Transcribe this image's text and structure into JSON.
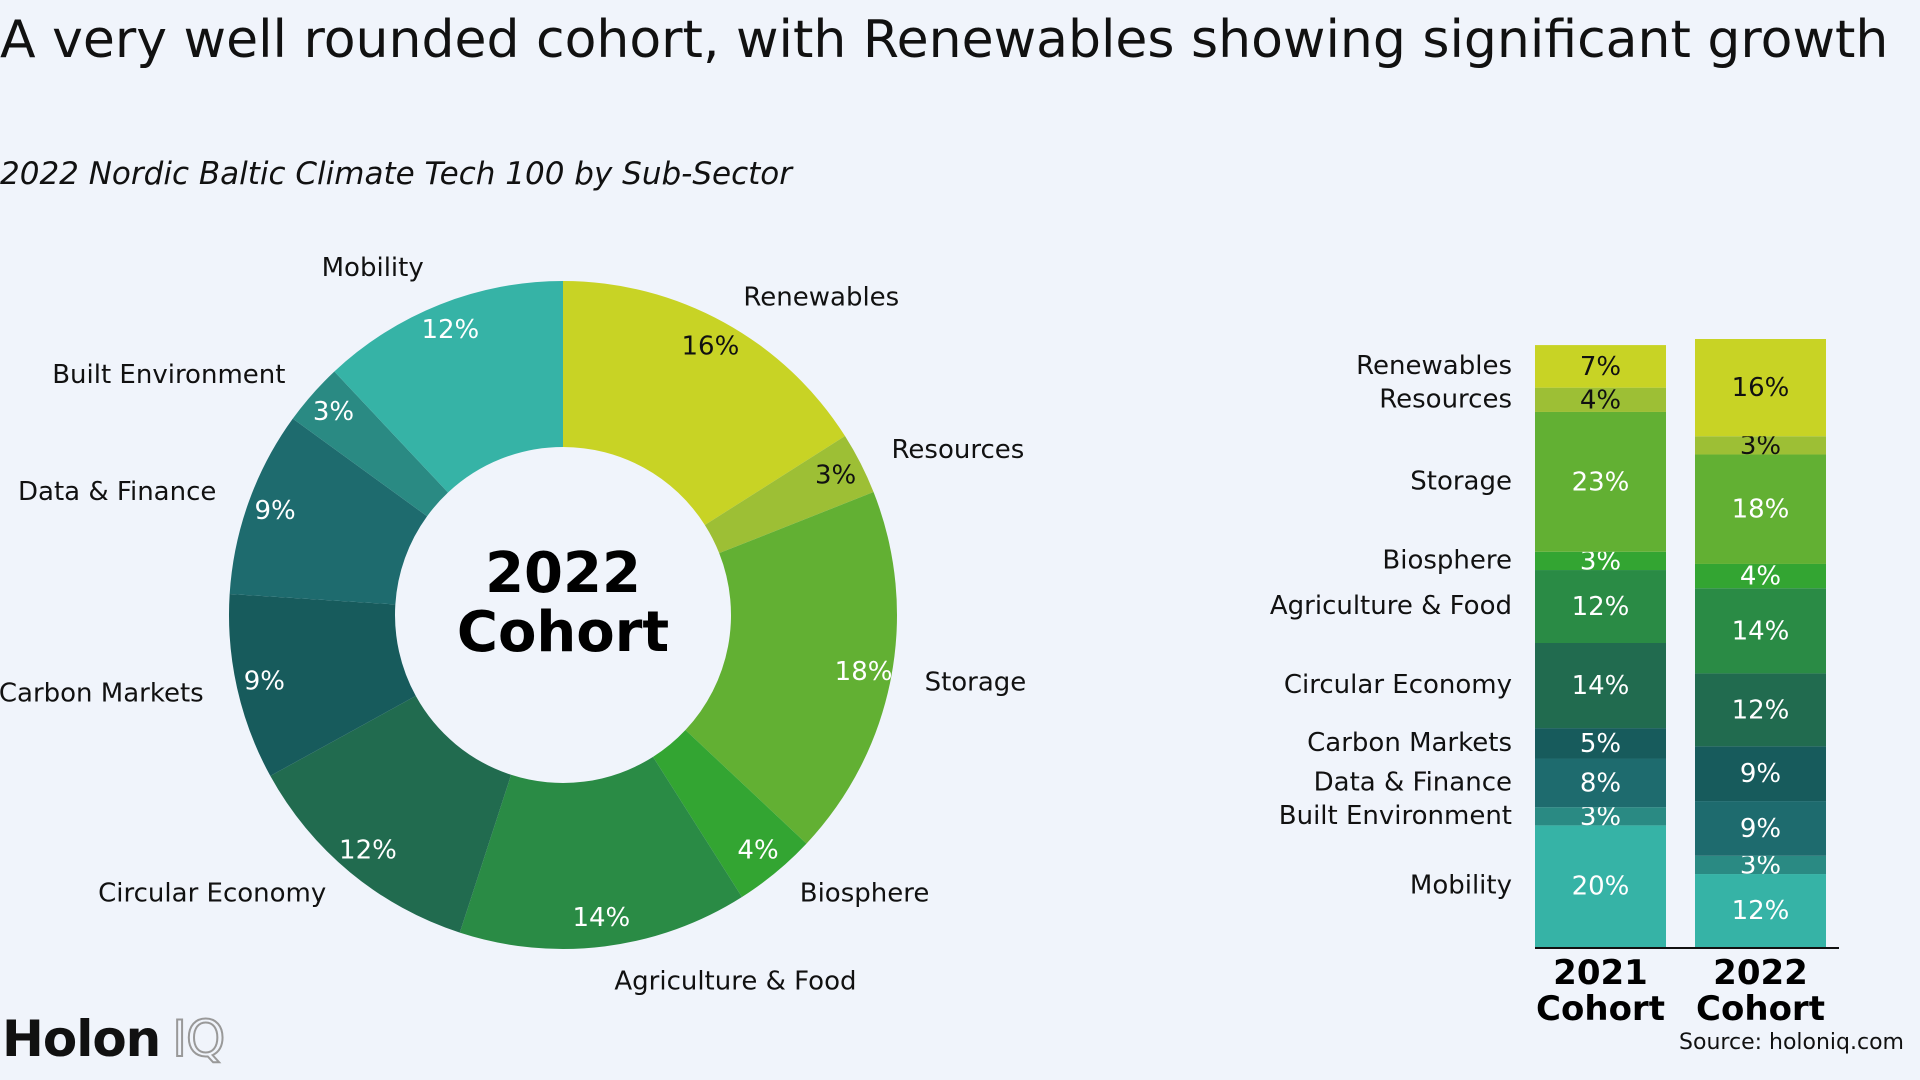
{
  "header": {
    "title": "A very well rounded cohort, with Renewables showing significant growth",
    "subtitle": "2022 Nordic Baltic Climate Tech 100 by Sub-Sector"
  },
  "chart_data": [
    {
      "type": "donut",
      "center_label": "2022 Cohort",
      "categories": [
        "Renewables",
        "Resources",
        "Storage",
        "Biosphere",
        "Agriculture & Food",
        "Circular Economy",
        "Carbon Markets",
        "Data & Finance",
        "Built Environment",
        "Mobility"
      ],
      "values": [
        16,
        3,
        18,
        4,
        14,
        12,
        9,
        9,
        3,
        12
      ],
      "value_labels": [
        "16%",
        "3%",
        "18%",
        "4%",
        "14%",
        "12%",
        "9%",
        "9%",
        "3%",
        "12%"
      ],
      "colors": [
        "#c8d325",
        "#9dbf35",
        "#62b033",
        "#33a532",
        "#2a8b45",
        "#216b4f",
        "#175b5c",
        "#1e6b6e",
        "#2a8a83",
        "#36b3a6"
      ]
    },
    {
      "type": "stacked_bar",
      "categories": [
        "2021 Cohort",
        "2022 Cohort"
      ],
      "series": [
        {
          "name": "Renewables",
          "color": "#c8d325",
          "values": [
            7,
            16
          ],
          "value_labels": [
            "7%",
            "16%"
          ]
        },
        {
          "name": "Resources",
          "color": "#9dbf35",
          "values": [
            4,
            3
          ],
          "value_labels": [
            "4%",
            "3%"
          ]
        },
        {
          "name": "Storage",
          "color": "#62b033",
          "values": [
            23,
            18
          ],
          "value_labels": [
            "23%",
            "18%"
          ]
        },
        {
          "name": "Biosphere",
          "color": "#33a532",
          "values": [
            3,
            4
          ],
          "value_labels": [
            "3%",
            "4%"
          ]
        },
        {
          "name": "Agriculture & Food",
          "color": "#2a8b45",
          "values": [
            12,
            14
          ],
          "value_labels": [
            "12%",
            "14%"
          ]
        },
        {
          "name": "Circular Economy",
          "color": "#216b4f",
          "values": [
            14,
            12
          ],
          "value_labels": [
            "14%",
            "12%"
          ]
        },
        {
          "name": "Carbon Markets",
          "color": "#175b5c",
          "values": [
            5,
            9
          ],
          "value_labels": [
            "5%",
            "9%"
          ]
        },
        {
          "name": "Data & Finance",
          "color": "#1e6b6e",
          "values": [
            8,
            9
          ],
          "value_labels": [
            "8%",
            "9%"
          ]
        },
        {
          "name": "Built Environment",
          "color": "#2a8a83",
          "values": [
            3,
            3
          ],
          "value_labels": [
            "3%",
            "3%"
          ]
        },
        {
          "name": "Mobility",
          "color": "#36b3a6",
          "values": [
            20,
            12
          ],
          "value_labels": [
            "20%",
            "12%"
          ]
        }
      ]
    }
  ],
  "footer": {
    "logo_main": "Holon",
    "logo_accent": "IQ",
    "source": "Source: holoniq.com"
  }
}
